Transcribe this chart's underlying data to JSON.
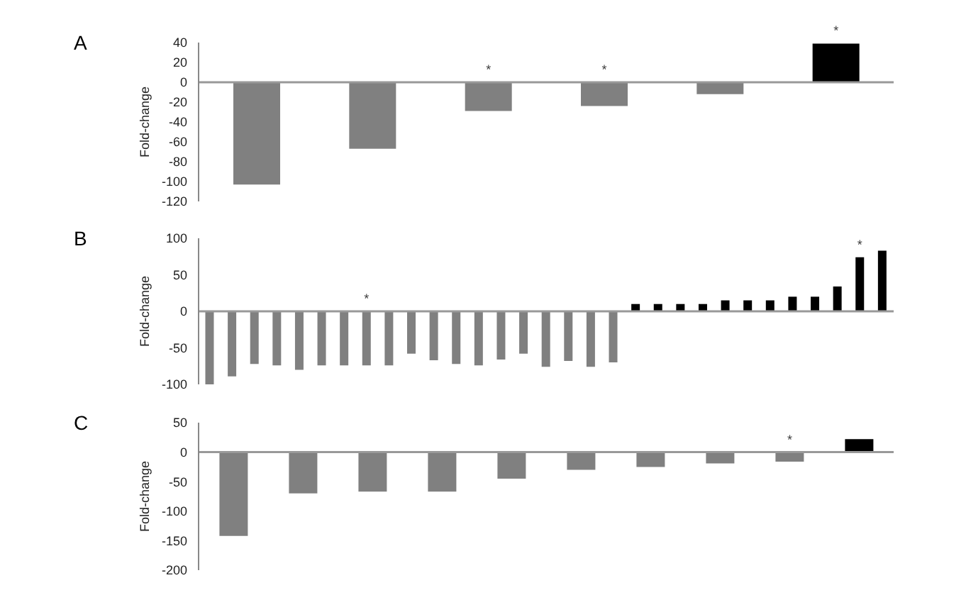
{
  "chart_data": [
    {
      "type": "bar",
      "title": "A",
      "ylabel": "Fold-change",
      "categories": [
        null,
        null,
        null,
        null,
        null,
        null
      ],
      "values": [
        -103,
        -67,
        -29,
        -24,
        -12,
        39
      ],
      "colors": [
        "#808080",
        "#808080",
        "#808080",
        "#808080",
        "#808080",
        "#000000"
      ],
      "value_labels": [
        null,
        null,
        "*",
        "*",
        null,
        "*"
      ],
      "ylim": [
        -120,
        40
      ],
      "yticks": [
        -120,
        -100,
        -80,
        -60,
        -40,
        -20,
        0,
        20,
        40
      ],
      "tick_labels": "y",
      "legend": false
    },
    {
      "type": "bar",
      "title": "B",
      "ylabel": "Fold-change",
      "categories": [
        null,
        null,
        null,
        null,
        null,
        null,
        null,
        null,
        null,
        null,
        null,
        null,
        null,
        null,
        null,
        null,
        null,
        null,
        null,
        null,
        null,
        null,
        null,
        null,
        null,
        null,
        null,
        null,
        null,
        null,
        null
      ],
      "values": [
        -100,
        -89,
        -72,
        -74,
        -80,
        -74,
        -74,
        -74,
        -74,
        -58,
        -67,
        -72,
        -74,
        -66,
        -58,
        -76,
        -68,
        -76,
        -70,
        10,
        10,
        10,
        10,
        15,
        15,
        15,
        20,
        20,
        34,
        74,
        83
      ],
      "colors": [
        "#808080",
        "#808080",
        "#808080",
        "#808080",
        "#808080",
        "#808080",
        "#808080",
        "#808080",
        "#808080",
        "#808080",
        "#808080",
        "#808080",
        "#808080",
        "#808080",
        "#808080",
        "#808080",
        "#808080",
        "#808080",
        "#808080",
        "#000000",
        "#000000",
        "#000000",
        "#000000",
        "#000000",
        "#000000",
        "#000000",
        "#000000",
        "#000000",
        "#000000",
        "#000000",
        "#000000"
      ],
      "value_labels": [
        null,
        null,
        null,
        null,
        null,
        null,
        null,
        "*",
        null,
        null,
        null,
        null,
        null,
        null,
        null,
        null,
        null,
        null,
        null,
        null,
        null,
        null,
        null,
        null,
        null,
        null,
        null,
        null,
        null,
        "*",
        null
      ],
      "ylim": [
        -100,
        100
      ],
      "yticks": [
        -100,
        -50,
        0,
        50,
        100
      ],
      "tick_labels": "y",
      "legend": false
    },
    {
      "type": "bar",
      "title": "C",
      "ylabel": "Fold-change",
      "categories": [
        null,
        null,
        null,
        null,
        null,
        null,
        null,
        null,
        null,
        null
      ],
      "values": [
        -142,
        -70,
        -67,
        -67,
        -45,
        -30,
        -25,
        -19,
        -16,
        22
      ],
      "colors": [
        "#808080",
        "#808080",
        "#808080",
        "#808080",
        "#808080",
        "#808080",
        "#808080",
        "#808080",
        "#808080",
        "#000000"
      ],
      "value_labels": [
        null,
        null,
        null,
        null,
        null,
        null,
        null,
        null,
        "*",
        null
      ],
      "ylim": [
        -200,
        50
      ],
      "yticks": [
        -200,
        -150,
        -100,
        -50,
        0,
        50
      ],
      "tick_labels": "y",
      "legend": false
    }
  ]
}
